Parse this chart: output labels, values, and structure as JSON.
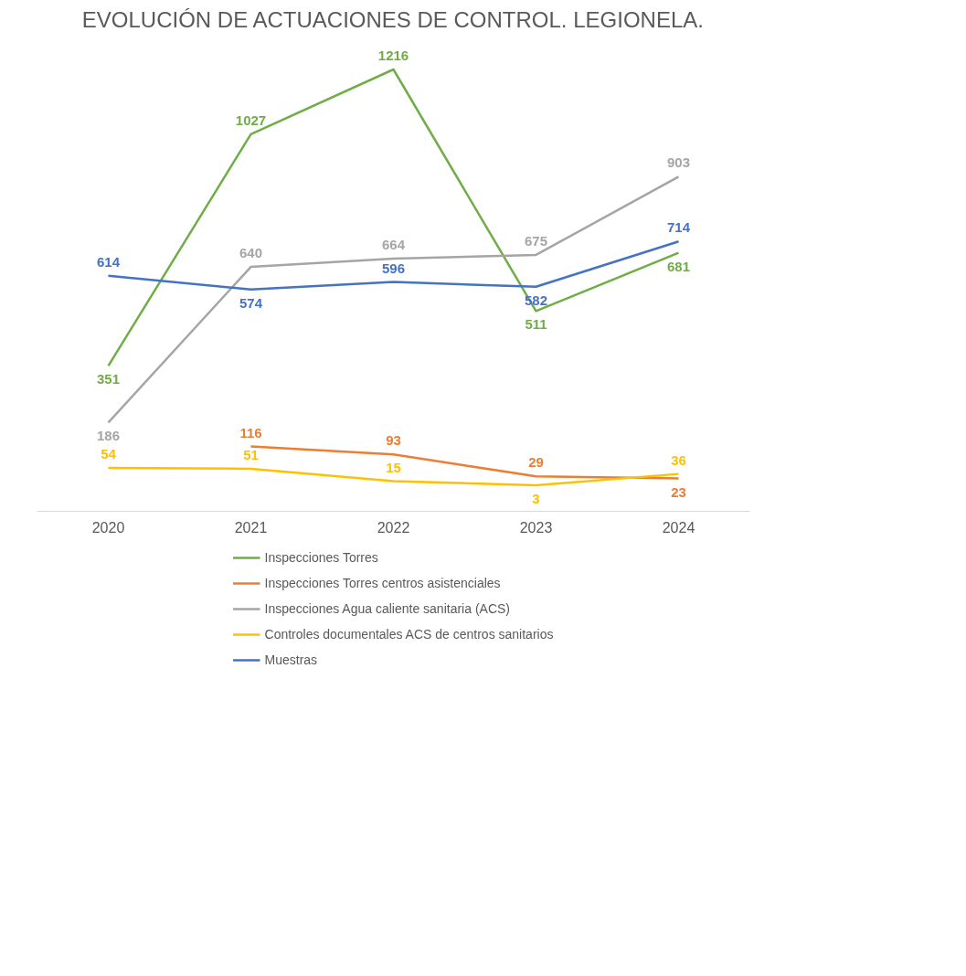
{
  "chart_data": {
    "type": "line",
    "title": "EVOLUCIÓN DE ACTUACIONES DE CONTROL. LEGIONELA.",
    "categories": [
      "2020",
      "2021",
      "2022",
      "2023",
      "2024"
    ],
    "series": [
      {
        "name": "Inspecciones Torres",
        "color": "#70ad47",
        "values": [
          351,
          1027,
          1216,
          511,
          681
        ]
      },
      {
        "name": "Inspecciones Torres centros asistenciales",
        "color": "#ed7d31",
        "values": [
          null,
          116,
          93,
          29,
          23
        ]
      },
      {
        "name": "Inspecciones Agua caliente sanitaria (ACS)",
        "color": "#a5a5a5",
        "values": [
          186,
          640,
          664,
          675,
          903
        ]
      },
      {
        "name": "Controles documentales ACS de centros sanitarios",
        "color": "#ffc000",
        "values": [
          54,
          51,
          15,
          3,
          36
        ]
      },
      {
        "name": "Muestras",
        "color": "#4472c4",
        "values": [
          614,
          574,
          596,
          582,
          714
        ]
      }
    ],
    "data_labels": true,
    "legend": "bottom",
    "grid": false,
    "line_style": "solid",
    "marker": "none"
  }
}
